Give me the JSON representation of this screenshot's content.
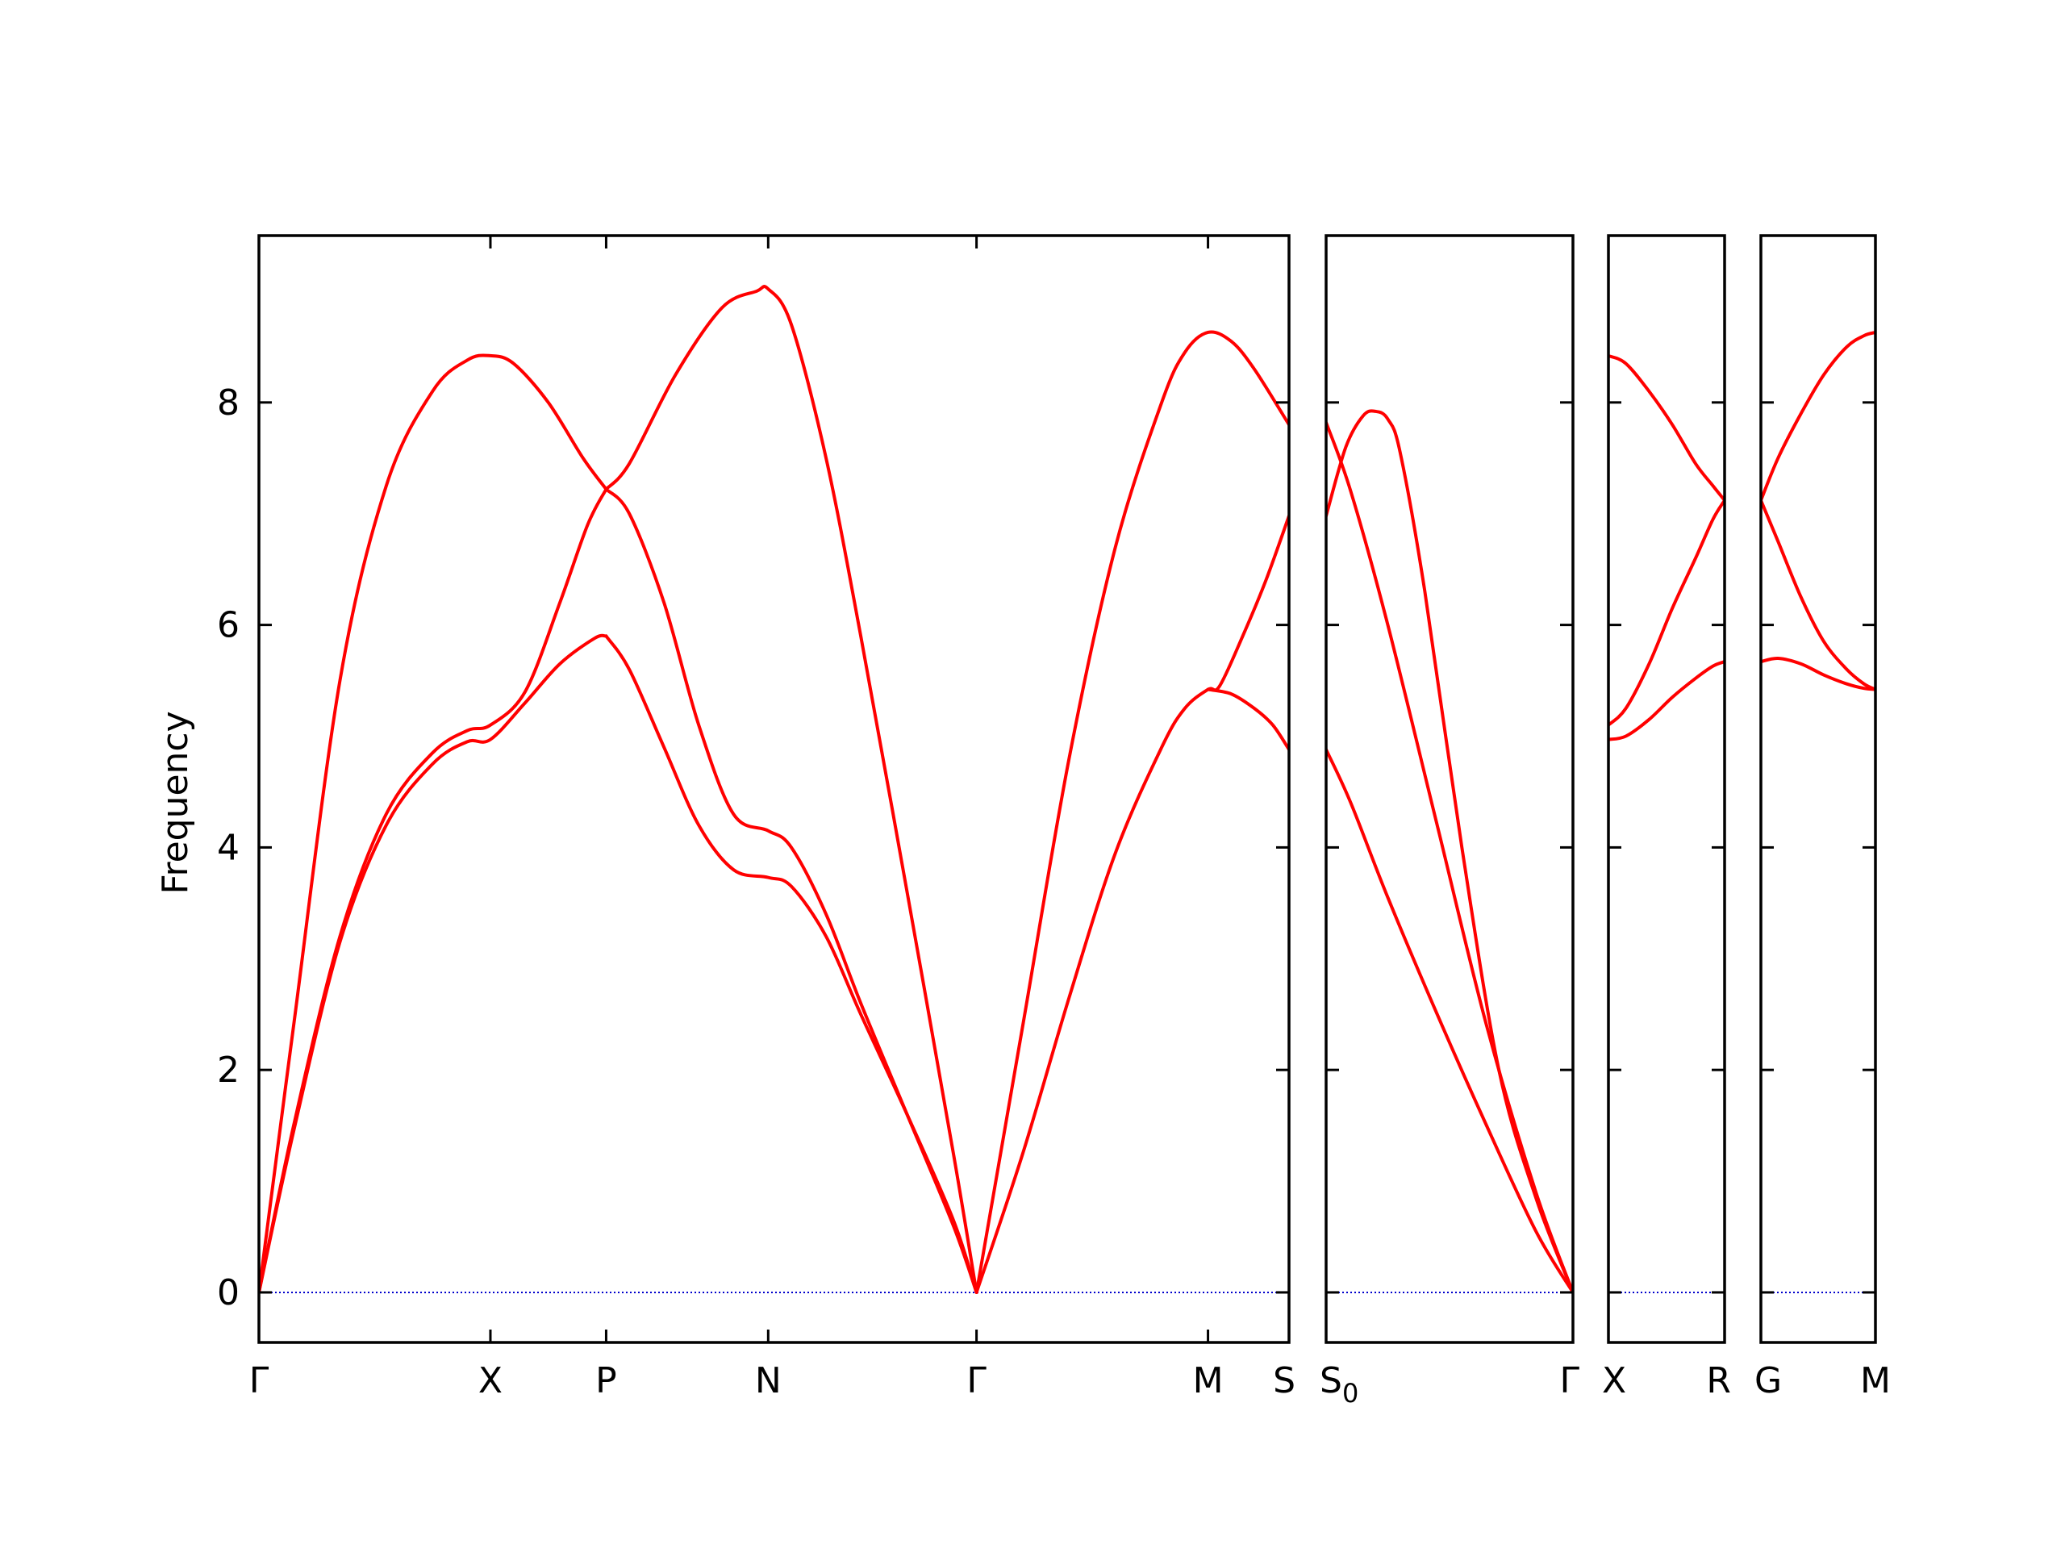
{
  "chart_data": {
    "type": "line",
    "title": "",
    "ylabel": "Frequency",
    "ylim": [
      -0.45,
      9.5
    ],
    "yticks": [
      0,
      2,
      4,
      6,
      8
    ],
    "grid": false,
    "band_color": "#ff0000",
    "zero_line_color": "#0000cc",
    "panels": [
      {
        "xlim": [
          0,
          4.45
        ],
        "ticks": [
          {
            "x": 0,
            "label": "Γ"
          },
          {
            "x": 1.0,
            "label": "X"
          },
          {
            "x": 1.5,
            "label": "P"
          },
          {
            "x": 2.2,
            "label": "N"
          },
          {
            "x": 3.1,
            "label": "Γ"
          },
          {
            "x": 4.1,
            "label": "M"
          },
          {
            "x": 4.45,
            "label": "S"
          }
        ],
        "series": [
          {
            "x": [
              0,
              0.15,
              0.35,
              0.55,
              0.75,
              0.9,
              1.0,
              1.1,
              1.25,
              1.4,
              1.5
            ],
            "y": [
              0,
              2.4,
              5.5,
              7.25,
              8.1,
              8.38,
              8.42,
              8.35,
              8.0,
              7.5,
              7.22
            ]
          },
          {
            "x": [
              1.5,
              1.6,
              1.8,
              2.0,
              2.15,
              2.2,
              2.3,
              2.45,
              2.6,
              2.8,
              3.0,
              3.1
            ],
            "y": [
              7.22,
              7.45,
              8.25,
              8.85,
              9.0,
              9.02,
              8.7,
              7.5,
              5.9,
              3.6,
              1.25,
              0
            ]
          },
          {
            "x": [
              0,
              0.15,
              0.35,
              0.55,
              0.75,
              0.9,
              1.0,
              1.15,
              1.3,
              1.42,
              1.5
            ],
            "y": [
              0,
              1.5,
              3.2,
              4.3,
              4.85,
              5.05,
              5.1,
              5.4,
              6.2,
              6.9,
              7.22
            ]
          },
          {
            "x": [
              1.5,
              1.6,
              1.75,
              1.9,
              2.05,
              2.2,
              2.3,
              2.45,
              2.6,
              2.8,
              3.0,
              3.1
            ],
            "y": [
              7.22,
              7.0,
              6.2,
              5.1,
              4.3,
              4.15,
              4.0,
              3.4,
              2.6,
              1.6,
              0.6,
              0
            ]
          },
          {
            "x": [
              0,
              0.15,
              0.35,
              0.55,
              0.75,
              0.9,
              1.0,
              1.15,
              1.3,
              1.45,
              1.5
            ],
            "y": [
              0,
              1.45,
              3.15,
              4.2,
              4.75,
              4.95,
              4.97,
              5.3,
              5.65,
              5.88,
              5.9
            ]
          },
          {
            "x": [
              1.5,
              1.6,
              1.75,
              1.9,
              2.05,
              2.2,
              2.3,
              2.45,
              2.6,
              2.8,
              3.0,
              3.1
            ],
            "y": [
              5.9,
              5.6,
              4.9,
              4.2,
              3.8,
              3.73,
              3.65,
              3.2,
              2.5,
              1.6,
              0.65,
              0
            ]
          },
          {
            "x": [
              3.1,
              3.3,
              3.5,
              3.7,
              3.9,
              4.0,
              4.1,
              4.2,
              4.3,
              4.45
            ],
            "y": [
              0,
              2.4,
              4.8,
              6.7,
              8.0,
              8.45,
              8.63,
              8.55,
              8.3,
              7.8
            ]
          },
          {
            "x": [
              3.1,
              3.3,
              3.5,
              3.7,
              3.9,
              4.0,
              4.1,
              4.15,
              4.25,
              4.35,
              4.45
            ],
            "y": [
              0,
              1.25,
              2.65,
              3.95,
              4.9,
              5.25,
              5.42,
              5.45,
              5.9,
              6.4,
              6.98
            ]
          },
          {
            "x": [
              4.1,
              4.2,
              4.3,
              4.38,
              4.45
            ],
            "y": [
              5.42,
              5.38,
              5.25,
              5.1,
              4.88
            ]
          }
        ]
      },
      {
        "xlim": [
          0,
          1.0
        ],
        "ticks": [
          {
            "x": 0,
            "label": "S0"
          },
          {
            "x": 1.0,
            "label": "Γ"
          }
        ],
        "series": [
          {
            "x": [
              0,
              0.08,
              0.15,
              0.2,
              0.25,
              0.3,
              0.4,
              0.55,
              0.7,
              0.85,
              1.0
            ],
            "y": [
              6.98,
              7.6,
              7.88,
              7.92,
              7.85,
              7.55,
              6.3,
              4.0,
              2.0,
              0.85,
              0
            ]
          },
          {
            "x": [
              0,
              0.1,
              0.25,
              0.45,
              0.65,
              0.85,
              1.0
            ],
            "y": [
              7.82,
              7.2,
              6.0,
              4.2,
              2.4,
              0.9,
              0
            ]
          },
          {
            "x": [
              0,
              0.1,
              0.25,
              0.45,
              0.65,
              0.85,
              1.0
            ],
            "y": [
              4.88,
              4.4,
              3.55,
              2.5,
              1.5,
              0.55,
              0
            ]
          }
        ]
      },
      {
        "xlim": [
          0,
          1.0
        ],
        "ticks": [
          {
            "x": 0,
            "label": "X"
          },
          {
            "x": 1.0,
            "label": "R"
          }
        ],
        "series": [
          {
            "x": [
              0,
              0.15,
              0.35,
              0.55,
              0.75,
              0.9,
              1.0
            ],
            "y": [
              8.42,
              8.35,
              8.1,
              7.8,
              7.45,
              7.25,
              7.12
            ]
          },
          {
            "x": [
              0,
              0.15,
              0.35,
              0.55,
              0.75,
              0.9,
              1.0
            ],
            "y": [
              5.1,
              5.25,
              5.65,
              6.15,
              6.6,
              6.95,
              7.12
            ]
          },
          {
            "x": [
              0,
              0.15,
              0.35,
              0.55,
              0.75,
              0.9,
              1.0
            ],
            "y": [
              4.97,
              5.0,
              5.15,
              5.35,
              5.52,
              5.63,
              5.67
            ]
          }
        ]
      },
      {
        "xlim": [
          0,
          1.0
        ],
        "ticks": [
          {
            "x": 0,
            "label": "G"
          },
          {
            "x": 1.0,
            "label": "M"
          }
        ],
        "series": [
          {
            "x": [
              0,
              0.15,
              0.35,
              0.55,
              0.75,
              0.9,
              1.0
            ],
            "y": [
              7.12,
              7.5,
              7.9,
              8.25,
              8.5,
              8.6,
              8.63
            ]
          },
          {
            "x": [
              0,
              0.15,
              0.35,
              0.55,
              0.75,
              0.9,
              1.0
            ],
            "y": [
              7.12,
              6.75,
              6.25,
              5.85,
              5.6,
              5.47,
              5.42
            ]
          },
          {
            "x": [
              0,
              0.15,
              0.35,
              0.55,
              0.75,
              0.9,
              1.0
            ],
            "y": [
              5.67,
              5.7,
              5.65,
              5.55,
              5.47,
              5.43,
              5.42
            ]
          }
        ]
      }
    ]
  }
}
